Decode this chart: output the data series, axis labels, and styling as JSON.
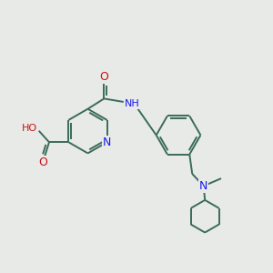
{
  "bg_color": "#e8eae8",
  "bond_color": "#3a6b5a",
  "N_color": "#1a1aee",
  "O_color": "#cc1111",
  "lw": 1.4,
  "fs": 8.0,
  "xlim": [
    0,
    10
  ],
  "ylim": [
    0,
    10
  ]
}
